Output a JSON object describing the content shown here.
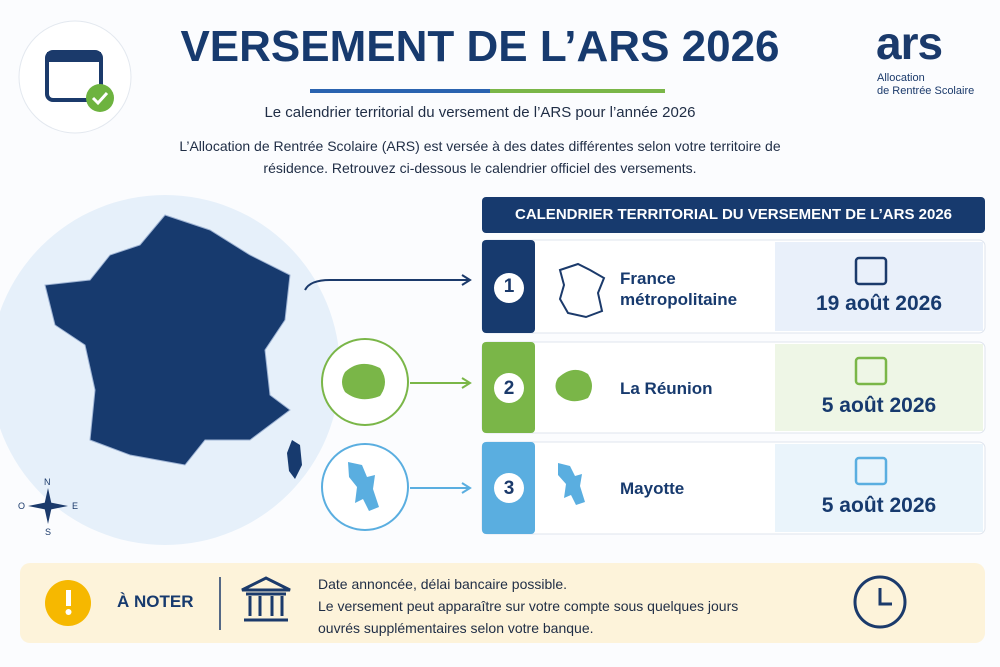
{
  "header": {
    "title": "VERSEMENT DE L’ARS 2026",
    "subtitle": "Le calendrier territorial du versement de l’ARS pour l’année 2026",
    "intro": "L’Allocation de Rentrée Scolaire (ARS) est versée à des dates différentes selon votre territoire de résidence. Retrouvez ci-dessous le calendrier officiel des versements."
  },
  "logo": {
    "mark": "ars",
    "line1": "Allocation",
    "line2": "de Rentrée Scolaire"
  },
  "compass": {
    "north": "N",
    "east": "E",
    "south": "S",
    "west": "O"
  },
  "calendar": {
    "heading": "CALENDRIER TERRITORIAL DU VERSEMENT DE L’ARS 2026",
    "rows": [
      {
        "number": "1",
        "territory": "France métropolitaine",
        "date": "19 août 2026"
      },
      {
        "number": "2",
        "territory": "La Réunion",
        "date": "5 août 2026"
      },
      {
        "number": "3",
        "territory": "Mayotte",
        "date": "5 août 2026"
      }
    ]
  },
  "note": {
    "label": "À NOTER",
    "lines": [
      "Date annoncée, délai bancaire possible.",
      "Le versement peut apparaître sur votre compte sous quelques jours",
      "ouvrés supplémentaires selon votre banque."
    ]
  }
}
